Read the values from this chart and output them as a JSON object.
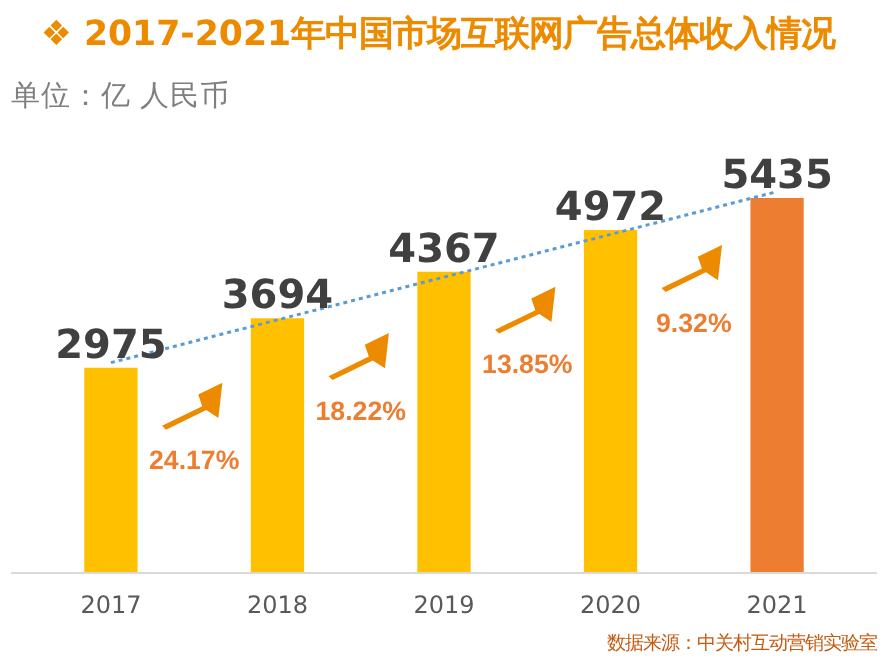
{
  "chart_data": {
    "type": "bar",
    "title": "❖  2017-2021年中国市场互联网广告总体收入情况",
    "subtitle": "单位：亿 人民币",
    "categories": [
      "2017",
      "2018",
      "2019",
      "2020",
      "2021"
    ],
    "series": [
      {
        "values": [
          2975,
          3694,
          4367,
          4972,
          5435
        ],
        "colors": [
          "#ffc000",
          "#ffc000",
          "#ffc000",
          "#ffc000",
          "#ed7d31"
        ],
        "value_labels": [
          "2975",
          "3694",
          "4367",
          "4972",
          "5435"
        ]
      },
      {
        "type": "line",
        "values": [
          3049,
          3669,
          4289,
          4908,
          5528
        ],
        "color": "#5b9bd5",
        "line_style": "dotted",
        "value_labels": [
          null,
          null,
          null,
          null,
          null
        ]
      }
    ],
    "tick_labels": "x",
    "grid": false,
    "annotations": [
      "24.17%",
      "18.22%",
      "13.85%",
      "9.32%",
      "数据来源：中关村互动营销实验室"
    ]
  }
}
